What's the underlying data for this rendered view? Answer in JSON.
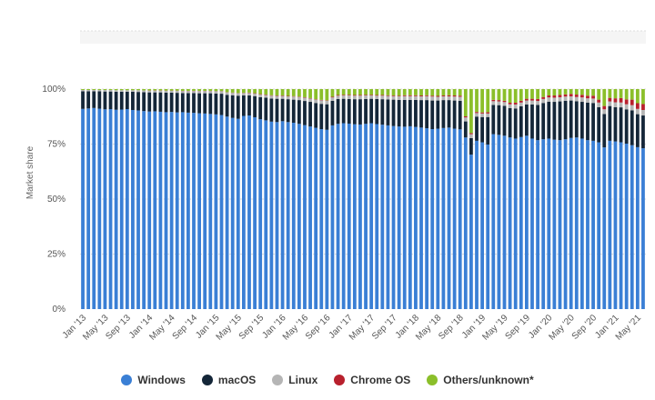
{
  "chart_data": {
    "type": "bar",
    "stacked": true,
    "title": "",
    "xlabel": "",
    "ylabel": "Market share",
    "ylim": [
      0,
      100
    ],
    "yticks": [
      "0%",
      "25%",
      "50%",
      "75%",
      "100%"
    ],
    "ytick_values": [
      0,
      25,
      50,
      75,
      100
    ],
    "categories": [
      "Jan '13",
      "Feb '13",
      "Mar '13",
      "Apr '13",
      "May '13",
      "Jun '13",
      "Jul '13",
      "Aug '13",
      "Sep '13",
      "Oct '13",
      "Nov '13",
      "Dec '13",
      "Jan '14",
      "Feb '14",
      "Mar '14",
      "Apr '14",
      "May '14",
      "Jun '14",
      "Jul '14",
      "Aug '14",
      "Sep '14",
      "Oct '14",
      "Nov '14",
      "Dec '14",
      "Jan '15",
      "Feb '15",
      "Mar '15",
      "Apr '15",
      "May '15",
      "Jun '15",
      "Jul '15",
      "Aug '15",
      "Sep '15",
      "Oct '15",
      "Nov '15",
      "Dec '15",
      "Jan '16",
      "Feb '16",
      "Mar '16",
      "Apr '16",
      "May '16",
      "Jun '16",
      "Jul '16",
      "Aug '16",
      "Sep '16",
      "Oct '16",
      "Nov '16",
      "Dec '16",
      "Jan '17",
      "Feb '17",
      "Mar '17",
      "Apr '17",
      "May '17",
      "Jun '17",
      "Jul '17",
      "Aug '17",
      "Sep '17",
      "Oct '17",
      "Nov '17",
      "Dec '17",
      "Jan '18",
      "Feb '18",
      "Mar '18",
      "Apr '18",
      "May '18",
      "Jun '18",
      "Jul '18",
      "Aug '18",
      "Sep '18",
      "Oct '18",
      "Nov '18",
      "Dec '18",
      "Jan '19",
      "Feb '19",
      "Mar '19",
      "Apr '19",
      "May '19",
      "Jun '19",
      "Jul '19",
      "Aug '19",
      "Sep '19",
      "Oct '19",
      "Nov '19",
      "Dec '19",
      "Jan '20",
      "Feb '20",
      "Mar '20",
      "Apr '20",
      "May '20",
      "Jun '20",
      "Jul '20",
      "Aug '20",
      "Sep '20",
      "Oct '20",
      "Nov '20",
      "Dec '20",
      "Jan '21",
      "Feb '21",
      "Mar '21",
      "Apr '21",
      "May '21",
      "Jun '21"
    ],
    "xtick_labels": [
      "Jan '13",
      "May '13",
      "Sep '13",
      "Jan '14",
      "May '14",
      "Sep '14",
      "Jan '15",
      "May '15",
      "Sep '15",
      "Jan '16",
      "May '16",
      "Sep '16",
      "Jan '17",
      "May '17",
      "Sep '17",
      "Jan '18",
      "May '18",
      "Sep '18",
      "Jan '19",
      "May '19",
      "Sep '19",
      "Jan '20",
      "May '20",
      "Sep '20",
      "Jan '21",
      "May '21"
    ],
    "series": [
      {
        "name": "Windows",
        "color": "#3a7fd5",
        "values": [
          91.0,
          91.2,
          91.4,
          91.1,
          90.8,
          90.9,
          90.6,
          90.7,
          90.9,
          90.5,
          90.3,
          90.0,
          89.8,
          89.9,
          89.7,
          89.5,
          89.6,
          89.4,
          89.5,
          89.3,
          89.2,
          89.0,
          88.9,
          88.7,
          88.5,
          88.2,
          87.5,
          86.9,
          86.5,
          87.8,
          88.0,
          87.2,
          86.3,
          85.8,
          85.2,
          85.0,
          85.4,
          85.0,
          84.7,
          84.2,
          83.6,
          83.0,
          82.4,
          81.8,
          81.5,
          83.5,
          84.2,
          84.5,
          84.3,
          84.0,
          83.9,
          84.2,
          84.5,
          84.1,
          83.8,
          83.5,
          83.2,
          83.0,
          82.9,
          83.1,
          82.8,
          82.5,
          82.2,
          81.8,
          82.0,
          82.3,
          82.5,
          82.0,
          81.7,
          78.0,
          70.2,
          76.5,
          75.8,
          74.8,
          79.5,
          79.2,
          78.8,
          78.0,
          77.5,
          78.2,
          78.8,
          77.5,
          76.8,
          77.2,
          77.5,
          77.0,
          76.8,
          77.2,
          77.8,
          78.0,
          77.5,
          76.8,
          76.5,
          75.8,
          73.5,
          76.5,
          76.2,
          75.8,
          75.2,
          74.5,
          73.6,
          73.1
        ]
      },
      {
        "name": "macOS",
        "color": "#142638",
        "values": [
          8.0,
          7.8,
          7.6,
          7.9,
          8.1,
          8.0,
          8.2,
          8.1,
          7.9,
          8.3,
          8.4,
          8.6,
          8.7,
          8.6,
          8.8,
          8.9,
          8.8,
          8.9,
          8.7,
          8.9,
          9.0,
          9.1,
          9.2,
          9.4,
          9.5,
          9.7,
          9.9,
          10.3,
          10.5,
          9.3,
          9.1,
          9.6,
          10.0,
          10.3,
          10.5,
          10.6,
          10.2,
          10.4,
          10.5,
          10.8,
          11.0,
          11.2,
          11.3,
          11.5,
          11.6,
          11.2,
          11.3,
          11.1,
          11.2,
          11.4,
          11.5,
          11.3,
          11.1,
          11.4,
          11.6,
          11.8,
          12.0,
          12.1,
          12.2,
          12.0,
          12.3,
          12.5,
          12.8,
          13.0,
          12.8,
          12.7,
          12.5,
          12.8,
          13.0,
          7.3,
          7.5,
          11.0,
          11.5,
          12.5,
          13.3,
          13.5,
          13.6,
          13.4,
          13.7,
          14.0,
          14.2,
          15.5,
          16.0,
          16.5,
          16.8,
          17.2,
          17.6,
          17.5,
          17.0,
          16.5,
          16.7,
          17.0,
          17.2,
          16.0,
          15.2,
          15.8,
          15.6,
          15.9,
          15.6,
          15.8,
          15.0,
          14.9
        ]
      },
      {
        "name": "Linux",
        "color": "#b5b5b5",
        "values": [
          0.6,
          0.6,
          0.6,
          0.6,
          0.7,
          0.7,
          0.7,
          0.7,
          0.7,
          0.7,
          0.8,
          0.8,
          0.8,
          0.8,
          0.8,
          0.8,
          0.8,
          0.9,
          0.9,
          0.9,
          0.9,
          1.0,
          1.0,
          1.0,
          1.0,
          1.1,
          1.1,
          1.1,
          1.1,
          1.1,
          1.1,
          1.1,
          1.2,
          1.2,
          1.3,
          1.3,
          1.3,
          1.3,
          1.4,
          1.4,
          1.5,
          1.5,
          1.5,
          1.6,
          1.6,
          1.5,
          1.5,
          1.5,
          1.6,
          1.6,
          1.6,
          1.6,
          1.5,
          1.5,
          1.6,
          1.6,
          1.6,
          1.6,
          1.7,
          1.7,
          1.7,
          1.7,
          1.8,
          1.8,
          1.7,
          1.7,
          1.7,
          1.8,
          1.8,
          1.8,
          1.8,
          1.6,
          1.6,
          1.6,
          1.7,
          1.7,
          1.7,
          1.7,
          1.8,
          1.7,
          1.8,
          1.8,
          1.8,
          1.8,
          1.9,
          1.9,
          1.9,
          1.9,
          1.9,
          1.9,
          2.0,
          2.0,
          2.0,
          2.1,
          2.1,
          2.1,
          2.2,
          2.2,
          2.3,
          2.4,
          2.4,
          2.5
        ]
      },
      {
        "name": "Chrome OS",
        "color": "#b8202d",
        "values": [
          0,
          0,
          0,
          0,
          0,
          0,
          0,
          0,
          0,
          0,
          0,
          0,
          0.1,
          0.1,
          0.1,
          0.1,
          0.1,
          0.1,
          0.1,
          0.1,
          0.1,
          0.1,
          0.1,
          0.1,
          0.1,
          0.1,
          0.1,
          0.1,
          0.1,
          0.1,
          0.2,
          0.2,
          0.2,
          0.2,
          0.2,
          0.2,
          0.2,
          0.2,
          0.2,
          0.2,
          0.2,
          0.2,
          0.2,
          0.2,
          0.2,
          0.3,
          0.3,
          0.3,
          0.3,
          0.3,
          0.3,
          0.3,
          0.3,
          0.3,
          0.3,
          0.3,
          0.3,
          0.3,
          0.4,
          0.4,
          0.4,
          0.4,
          0.4,
          0.4,
          0.4,
          0.4,
          0.5,
          0.5,
          0.5,
          0.5,
          0.5,
          0.5,
          0.5,
          0.6,
          0.6,
          0.6,
          0.6,
          0.7,
          0.8,
          0.8,
          0.8,
          0.8,
          0.9,
          0.9,
          0.9,
          1.0,
          1.0,
          1.0,
          1.1,
          1.1,
          1.2,
          1.2,
          1.3,
          1.3,
          1.5,
          1.6,
          1.8,
          2.0,
          2.2,
          2.5,
          2.6,
          2.7
        ]
      },
      {
        "name": "Others/unknown*",
        "color": "#8bbf2a",
        "values": [
          0.4,
          0.4,
          0.4,
          0.4,
          0.4,
          0.4,
          0.5,
          0.5,
          0.5,
          0.5,
          0.5,
          0.6,
          0.6,
          0.6,
          0.6,
          0.7,
          0.7,
          0.7,
          0.8,
          0.8,
          0.8,
          0.8,
          0.8,
          0.8,
          0.9,
          0.9,
          1.4,
          1.6,
          1.8,
          1.7,
          1.6,
          1.9,
          2.3,
          2.5,
          2.8,
          2.9,
          2.9,
          3.1,
          3.2,
          3.4,
          3.7,
          4.1,
          4.6,
          4.9,
          5.1,
          3.5,
          2.7,
          2.6,
          2.6,
          2.7,
          2.7,
          2.6,
          2.6,
          2.7,
          2.7,
          2.8,
          2.9,
          3.0,
          2.8,
          2.8,
          2.8,
          2.9,
          2.8,
          3.0,
          3.1,
          2.9,
          2.8,
          2.9,
          3.0,
          12.4,
          20.0,
          10.4,
          10.6,
          10.5,
          4.9,
          5.0,
          5.3,
          6.2,
          6.2,
          5.3,
          4.4,
          4.4,
          4.5,
          3.6,
          2.9,
          2.9,
          2.7,
          2.4,
          2.2,
          2.5,
          2.6,
          3.0,
          3.0,
          4.8,
          7.7,
          4.0,
          4.2,
          4.1,
          4.7,
          4.8,
          6.4,
          6.8
        ]
      }
    ],
    "legend_position": "bottom-center",
    "grid": true
  }
}
